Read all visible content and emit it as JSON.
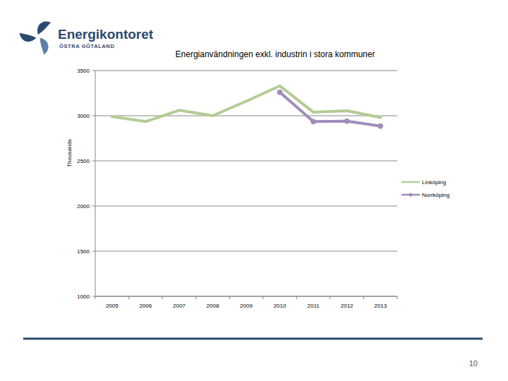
{
  "logo": {
    "name": "Energikontoret",
    "region": "ÖSTRA GÖTALAND"
  },
  "page_number": "10",
  "chart_data": {
    "type": "line",
    "title": "Energianvändningen exkl. industrin i stora kommuner",
    "y_label": "Thousands",
    "categories": [
      "2005",
      "2006",
      "2007",
      "2008",
      "2009",
      "2010",
      "2011",
      "2012",
      "2013"
    ],
    "series": [
      {
        "name": "Linköping",
        "color": "#b3cc94",
        "marker": "none",
        "line_style": "solid",
        "values": [
          2990,
          2935,
          3060,
          3000,
          3160,
          3330,
          3040,
          3055,
          2980
        ]
      },
      {
        "name": "Norrköping",
        "color": "#a08dbb",
        "marker": "circle",
        "line_style": "solid",
        "values": [
          null,
          null,
          null,
          null,
          null,
          3260,
          2935,
          2940,
          2885
        ]
      }
    ],
    "ylim": [
      1000,
      3500
    ],
    "yticks": [
      1000,
      1500,
      2000,
      2500,
      3000,
      3500
    ],
    "grid": true,
    "legend": "right"
  }
}
